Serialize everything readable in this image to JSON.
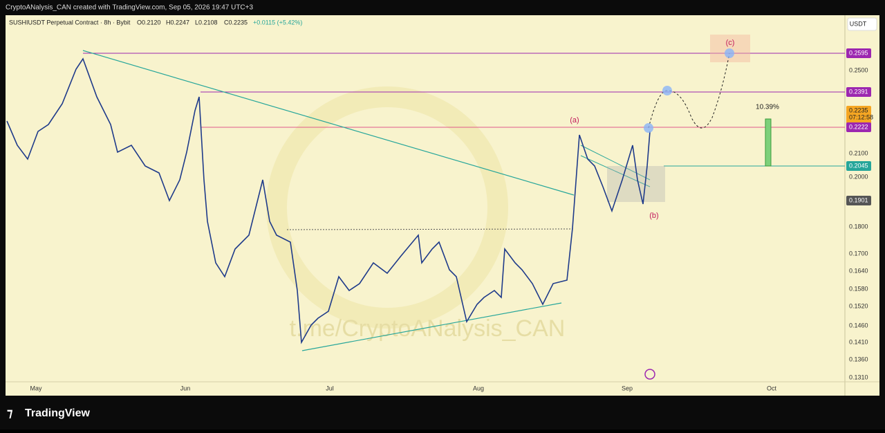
{
  "header": {
    "attribution": "CryptoANalysis_CAN created with TradingView.com, Sep 05, 2026 19:47 UTC+3"
  },
  "legend": [
    "SUSHIUSDT Perpetual Contract · 8h · Bybit",
    "O0.2120",
    "H0.2247",
    "L0.2108",
    "C0.2235",
    "+0.0115 (+5.42%)"
  ],
  "currency": "USDT",
  "price_axis": [
    "0.2595",
    "0.2500",
    "0.2391",
    "0.2235",
    "0.2222",
    "0.2100",
    "0.2045",
    "0.2000",
    "0.1901",
    "0.1800",
    "0.1700",
    "0.1640",
    "0.1580",
    "0.1520",
    "0.1460",
    "0.1410",
    "0.1360",
    "0.1310"
  ],
  "countdown": "07:12:58",
  "time_axis": [
    "May",
    "Jun",
    "Jul",
    "Aug",
    "Sep",
    "Oct"
  ],
  "annotations": {
    "a": "(a)",
    "b": "(b)",
    "c": "(c)",
    "change": "10.39%"
  },
  "watermark": "t.me/CryptoANalysis_CAN",
  "footer": {
    "brand": "TradingView"
  }
}
